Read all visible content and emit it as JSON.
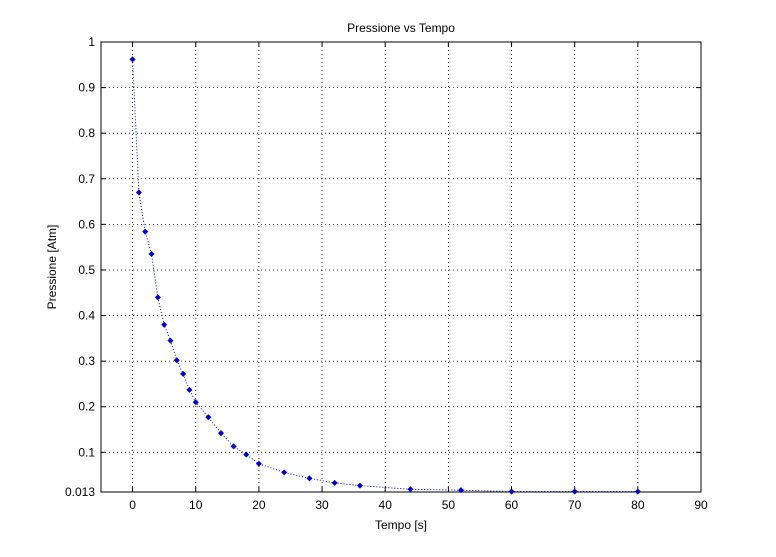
{
  "chart_data": {
    "type": "scatter",
    "title": "Pressione vs Tempo",
    "xlabel": "Tempo [s]",
    "ylabel": "Pressione [Atm]",
    "xlim": [
      -5,
      90
    ],
    "ylim": [
      0.013,
      1
    ],
    "x_ticks": [
      0,
      10,
      20,
      30,
      40,
      50,
      60,
      70,
      80,
      90
    ],
    "y_ticks": [
      0.013,
      0.1,
      0.2,
      0.3,
      0.4,
      0.5,
      0.6,
      0.7,
      0.8,
      0.9,
      1
    ],
    "y_tick_labels": [
      "0.013",
      "0.1",
      "0.2",
      "0.3",
      "0.4",
      "0.5",
      "0.6",
      "0.7",
      "0.8",
      "0.9",
      "1"
    ],
    "grid": true,
    "grid_style": "dotted",
    "line_style": "dotted",
    "marker": "diamond",
    "color": "#0000cc",
    "series": [
      {
        "x": [
          0,
          1,
          2,
          3,
          4,
          5,
          6,
          7,
          8,
          9,
          10,
          12,
          14,
          16,
          18,
          20,
          24,
          28,
          32,
          36,
          44,
          52,
          60,
          70,
          80
        ],
        "y": [
          0.962,
          0.67,
          0.584,
          0.535,
          0.44,
          0.38,
          0.345,
          0.302,
          0.272,
          0.237,
          0.21,
          0.177,
          0.142,
          0.113,
          0.095,
          0.075,
          0.056,
          0.043,
          0.033,
          0.027,
          0.019,
          0.017,
          0.014,
          0.014,
          0.014
        ]
      }
    ]
  }
}
